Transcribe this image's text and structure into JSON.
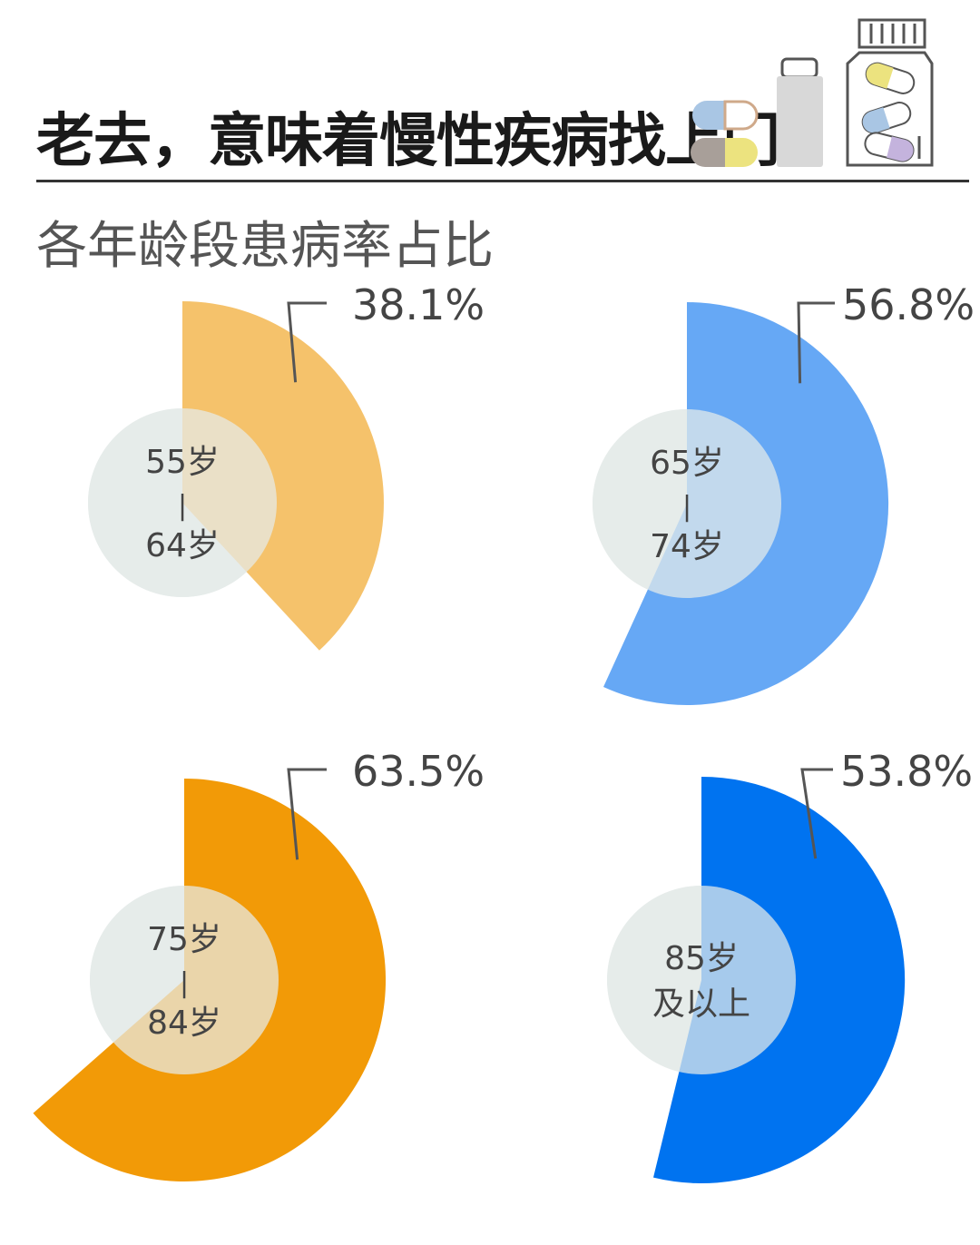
{
  "header": {
    "title": "老去，意味着慢性疾病找上门",
    "subtitle": "各年龄段患病率占比"
  },
  "icons": [
    "capsule-icon",
    "pill-bottle-icon",
    "medicine-jar-icon"
  ],
  "colors": {
    "inner_circle": "#e6ebea",
    "pct_text": "#444444",
    "leader_line": "#555555"
  },
  "chart_data": {
    "type": "pie",
    "unit": "%",
    "series": [
      {
        "label": "55岁\n|\n64岁",
        "value": 38.1,
        "value_text": "38.1%",
        "color": "#f5c26b"
      },
      {
        "label": "65岁\n|\n74岁",
        "value": 56.8,
        "value_text": "56.8%",
        "color": "#66a8f5"
      },
      {
        "label": "75岁\n|\n84岁",
        "value": 63.5,
        "value_text": "63.5%",
        "color": "#f29a07"
      },
      {
        "label": "85岁\n及以上",
        "value": 53.8,
        "value_text": "53.8%",
        "color": "#0073f0"
      }
    ]
  }
}
